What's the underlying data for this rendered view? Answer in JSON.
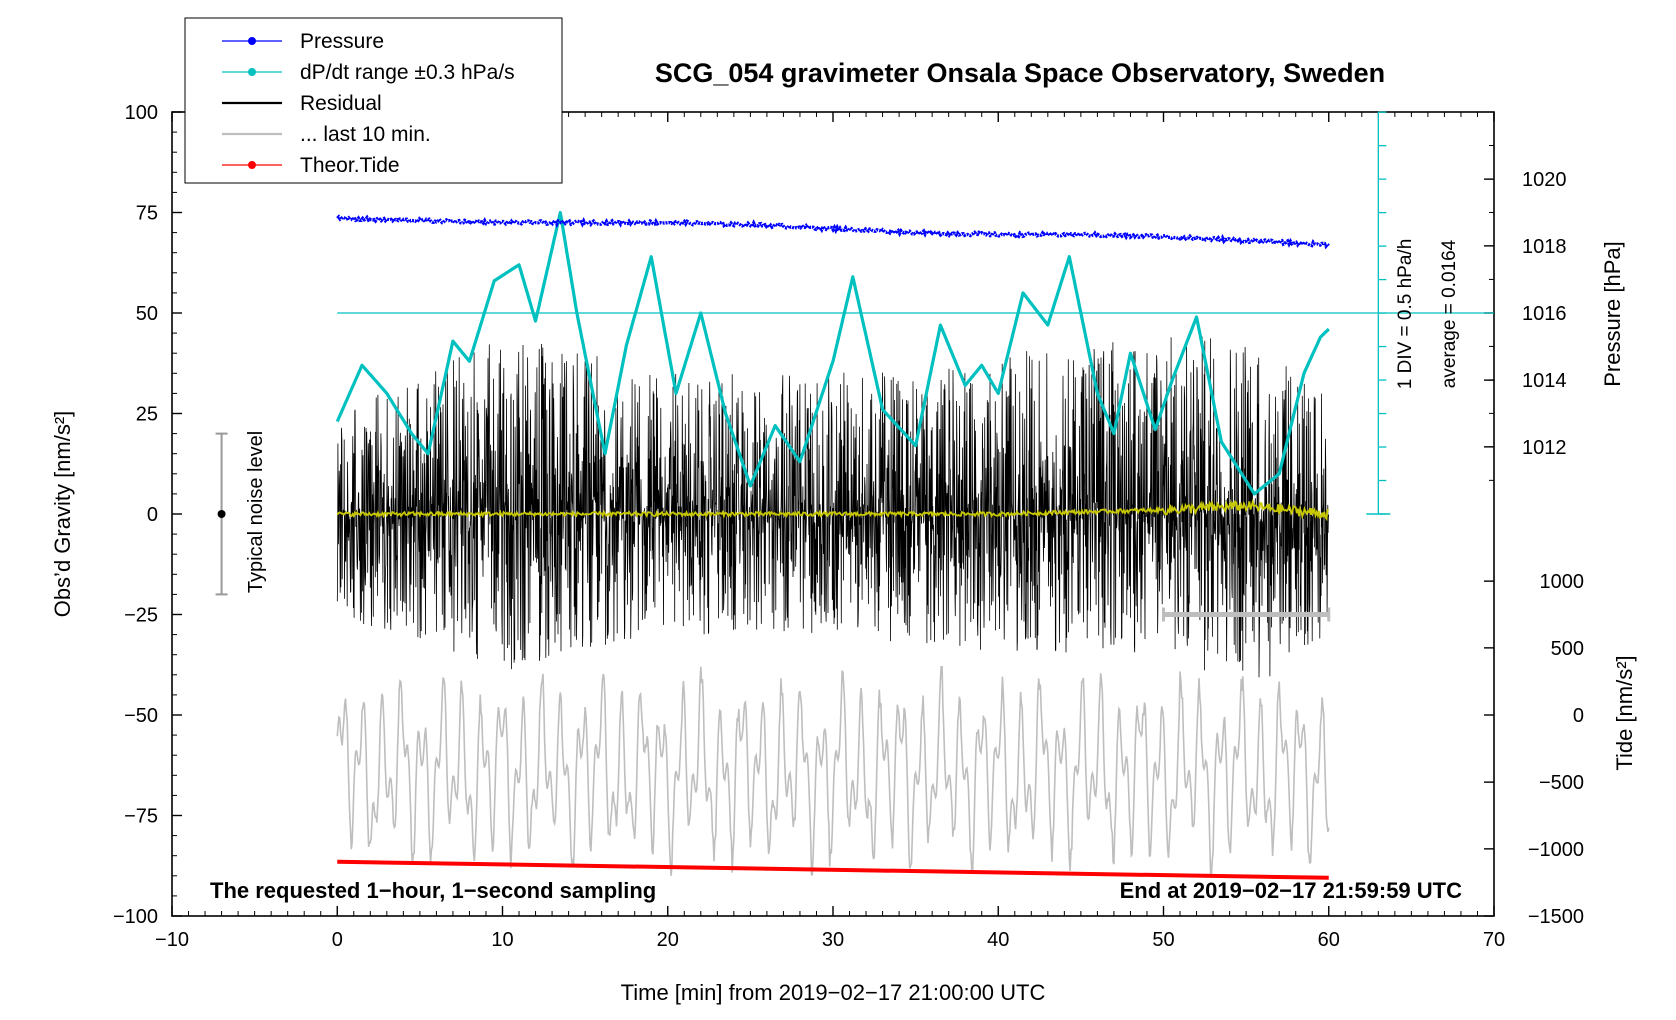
{
  "chart_data": {
    "type": "line",
    "title": "SCG_054 gravimeter Onsala Space Observatory, Sweden",
    "xlabel": "Time [min] from 2019−02−17 21:00:00 UTC",
    "ylabel": "Obs’d Gravity [nm/s²]",
    "ylabel_right_top": "Pressure [hPa]",
    "ylabel_right_bottom": "Tide [nm/s²]",
    "xlim": [
      -10,
      70
    ],
    "ylim": [
      -100,
      100
    ],
    "x_ticks": [
      "−10",
      "0",
      "10",
      "20",
      "30",
      "40",
      "50",
      "60",
      "70"
    ],
    "x_tick_values": [
      -10,
      0,
      10,
      20,
      30,
      40,
      50,
      60,
      70
    ],
    "y_ticks": [
      "100",
      "75",
      "50",
      "25",
      "0",
      "−25",
      "−50",
      "−75",
      "−100"
    ],
    "y_tick_values": [
      100,
      75,
      50,
      25,
      0,
      -25,
      -50,
      -75,
      -100
    ],
    "pressure_axis": {
      "ticks": [
        "1020",
        "1018",
        "1016",
        "1014",
        "1012"
      ],
      "tick_values": [
        1020,
        1018,
        1016,
        1014,
        1012
      ],
      "gravity_equiv": [
        83.3,
        66.7,
        50,
        33.3,
        16.7
      ]
    },
    "tide_axis": {
      "ticks": [
        "1000",
        "500",
        "0",
        "−500",
        "−1000",
        "−1500"
      ],
      "tick_values": [
        1000,
        500,
        0,
        -500,
        -1000,
        -1500
      ],
      "gravity_equiv": [
        -16.7,
        -33.3,
        -50,
        -66.7,
        -83.3,
        -100
      ]
    },
    "legend": [
      {
        "label": "Pressure",
        "color": "#0000ff",
        "marker": true
      },
      {
        "label": "dP/dt range ±0.3 hPa/s",
        "color": "#00c0c0",
        "marker": true
      },
      {
        "label": "Residual",
        "color": "#000000",
        "marker": false
      },
      {
        "label": "... last 10 min.",
        "color": "#bebebe",
        "marker": false
      },
      {
        "label": "Theor.Tide",
        "color": "#ff0000",
        "marker": true
      }
    ],
    "legend_position": "top-left",
    "annotations": {
      "bottom_left": "The requested 1−hour, 1−second sampling",
      "bottom_right": "End at 2019−02−17 21:59:59 UTC",
      "noise": "Typical noise level",
      "noise_range": [
        -20,
        20
      ],
      "div_label": "1 DIV = 0.5 hPa/h",
      "average_label": "average = 0.0164",
      "dpdt_reference_level": 50,
      "dpdt_scale_range": [
        0,
        100
      ],
      "last10_bar": {
        "x": [
          50,
          60
        ],
        "y": -25
      }
    },
    "series": [
      {
        "name": "Pressure",
        "color": "#0000ff",
        "x": [
          0,
          5,
          10,
          15,
          20,
          25,
          30,
          35,
          40,
          45,
          50,
          55,
          60
        ],
        "y": [
          73.5,
          73,
          72.5,
          72.5,
          72.5,
          72,
          71,
          70,
          69.5,
          69.5,
          69,
          68,
          67
        ]
      },
      {
        "name": "dP/dt range",
        "color": "#00c0c0",
        "x": [
          0,
          1.5,
          3,
          4.5,
          5.5,
          7,
          8,
          9.5,
          11,
          12,
          13.5,
          14.5,
          16.2,
          17.5,
          19,
          20.5,
          22,
          23.5,
          25,
          26.5,
          28,
          30,
          31.2,
          33,
          35,
          36.5,
          38,
          39,
          40,
          41.5,
          43,
          44.3,
          46,
          47,
          48,
          49.5,
          50.5,
          52,
          53.5,
          55.5,
          57,
          58.5,
          59.5,
          60
        ],
        "y": [
          23,
          37,
          30,
          20,
          15,
          43,
          38,
          58,
          62,
          48,
          75,
          50,
          15,
          42,
          64,
          30,
          50,
          25,
          7,
          22,
          13,
          38,
          59,
          26,
          17,
          47,
          32,
          37,
          30,
          55,
          47,
          64,
          30,
          20,
          40,
          21,
          33,
          49,
          18,
          5,
          10,
          35,
          44,
          46
        ]
      },
      {
        "name": "Residual",
        "color": "#000000",
        "x": [
          0,
          10,
          20,
          30,
          40,
          50,
          55,
          60
        ],
        "y_envelope": [
          [
            -25,
            25
          ],
          [
            -40,
            45
          ],
          [
            -30,
            35
          ],
          [
            -30,
            35
          ],
          [
            -35,
            40
          ],
          [
            -35,
            45
          ],
          [
            -45,
            45
          ],
          [
            -30,
            30
          ]
        ]
      },
      {
        "name": "Residual (smoothed)",
        "color": "#c8c800",
        "x": [
          0,
          10,
          20,
          30,
          40,
          50,
          55,
          60
        ],
        "y": [
          0,
          0,
          0,
          0,
          0,
          1,
          2,
          0
        ]
      },
      {
        "name": "Theor.Tide",
        "color": "#ff0000",
        "x": [
          0,
          60
        ],
        "y": [
          -86.5,
          -90.5
        ]
      },
      {
        "name": "Tide (scaled, grey)",
        "color": "#bebebe",
        "x": [
          0,
          60
        ],
        "y_envelope": [
          [
            -90,
            -38
          ],
          [
            -90,
            -38
          ]
        ]
      }
    ]
  }
}
